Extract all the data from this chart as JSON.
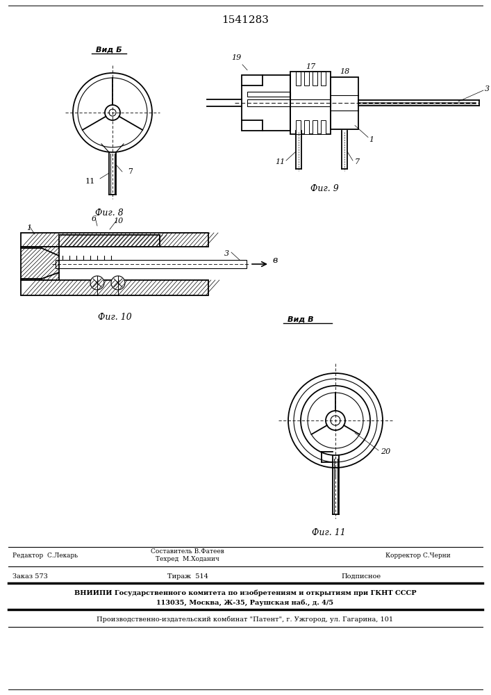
{
  "title": "1541283",
  "fig8_label": "Вид Б",
  "fig8_caption": "Фиг. 8",
  "fig9_caption": "Фиг. 9",
  "fig10_caption": "Фиг. 10",
  "fig11_label": "Вид В",
  "fig11_caption": "Фиг. 11",
  "footer_editor": "Редактор  С.Лекарь",
  "footer_sostavitel": "Составитель В.Фатеев",
  "footer_tekhred": "Техред  М.Ходанич",
  "footer_korrektor": "Корректор С.Черни",
  "footer_zakaz": "Заказ 573",
  "footer_tirazh": "Тираж  514",
  "footer_podpisnoe": "Подписное",
  "footer_vniiipi": "ВНИИПИ Государственного комитета по изобретениям и открытиям при ГКНТ СССР",
  "footer_address": "113035, Москва, Ж-35, Раушская наб., д. 4/5",
  "footer_proizv": "Производственно-издательский комбинат \"Патент\", г. Ужгород, ул. Гагарина, 101",
  "label_1": "1",
  "label_3": "3",
  "label_6": "6",
  "label_7": "7",
  "label_10": "10",
  "label_11": "11",
  "label_17": "17",
  "label_18": "18",
  "label_19": "19",
  "label_20": "20",
  "arrow_label": "в"
}
